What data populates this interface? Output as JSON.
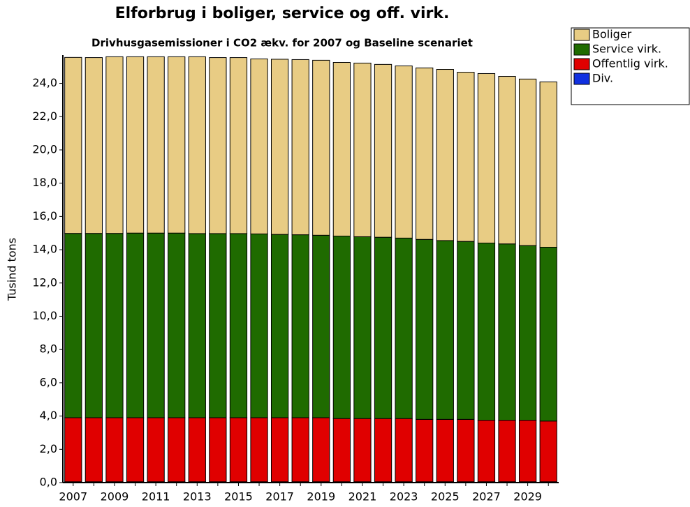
{
  "chart_data": {
    "type": "stacked-bar",
    "title": "Elforbrug i boliger, service og off. virk.",
    "subtitle": "Drivhusgasemissioner i CO2 ækv. for 2007 og Baseline scenariet",
    "y_label": "Tusind tons",
    "categories": [
      "2007",
      null,
      "2009",
      null,
      "2011",
      null,
      "2013",
      null,
      "2015",
      null,
      "2017",
      null,
      "2019",
      null,
      "2021",
      null,
      "2023",
      null,
      "2025",
      null,
      "2027",
      null,
      "2029",
      null
    ],
    "series": [
      {
        "name": "Div.",
        "color": "#1030e0",
        "values": [
          0.05,
          0.05,
          0.05,
          0.05,
          0.05,
          0.05,
          0.05,
          0.05,
          0.05,
          0.05,
          0.05,
          0.05,
          0.05,
          0.05,
          0.05,
          0.05,
          0.05,
          0.05,
          0.05,
          0.05,
          0.05,
          0.05,
          0.05,
          0.05
        ]
      },
      {
        "name": "Offentlig virk.",
        "color": "#e00000",
        "values": [
          3.85,
          3.85,
          3.85,
          3.85,
          3.85,
          3.85,
          3.85,
          3.85,
          3.85,
          3.85,
          3.85,
          3.85,
          3.85,
          3.8,
          3.8,
          3.8,
          3.8,
          3.75,
          3.75,
          3.75,
          3.7,
          3.7,
          3.7,
          3.65
        ]
      },
      {
        "name": "Service virk.",
        "color": "#1f6b00",
        "values": [
          11.08,
          11.08,
          11.08,
          11.1,
          11.1,
          11.1,
          11.07,
          11.07,
          11.07,
          11.05,
          11.02,
          11.0,
          10.97,
          10.97,
          10.93,
          10.9,
          10.85,
          10.82,
          10.75,
          10.7,
          10.65,
          10.6,
          10.5,
          10.45
        ]
      },
      {
        "name": "Boliger",
        "color": "#e8cc84",
        "values": [
          10.58,
          10.57,
          10.62,
          10.6,
          10.6,
          10.6,
          10.63,
          10.58,
          10.58,
          10.52,
          10.53,
          10.53,
          10.52,
          10.44,
          10.44,
          10.39,
          10.35,
          10.31,
          10.29,
          10.17,
          10.19,
          10.07,
          10.01,
          9.94
        ]
      }
    ],
    "ylim": [
      0,
      25.7
    ],
    "yticks": [
      {
        "value": 0,
        "label": "0,0"
      },
      {
        "value": 2,
        "label": "2,0"
      },
      {
        "value": 4,
        "label": "4,0"
      },
      {
        "value": 6,
        "label": "6,0"
      },
      {
        "value": 8,
        "label": "8,0"
      },
      {
        "value": 10,
        "label": "10,0"
      },
      {
        "value": 12,
        "label": "12,0"
      },
      {
        "value": 14,
        "label": "14,0"
      },
      {
        "value": 16,
        "label": "16,0"
      },
      {
        "value": 18,
        "label": "18,0"
      },
      {
        "value": 20,
        "label": "20,0"
      },
      {
        "value": 22,
        "label": "22,0"
      },
      {
        "value": 24,
        "label": "24,0"
      }
    ],
    "grid": false,
    "legend": "right"
  }
}
